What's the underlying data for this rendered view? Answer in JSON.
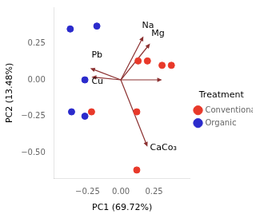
{
  "chart_data": {
    "type": "scatter",
    "xlabel": "PC1 (69.72%)",
    "ylabel": "PC2 (13.48%)",
    "series": [
      {
        "name": "Conventional",
        "color": "#e8392a",
        "marker": "circle",
        "x": [
          0.13,
          0.2,
          0.31,
          0.38,
          0.12,
          -0.22,
          0.12
        ],
        "y": [
          0.13,
          0.13,
          0.1,
          0.1,
          -0.22,
          -0.22,
          -0.62
        ]
      },
      {
        "name": "Organic",
        "color": "#2b2bcc",
        "marker": "circle",
        "x": [
          -0.38,
          -0.18,
          -0.27,
          -0.37,
          -0.27
        ],
        "y": [
          0.35,
          0.37,
          0.0,
          -0.22,
          -0.25
        ]
      }
    ],
    "annotations": [
      {
        "x": 0.17,
        "y": 0.3,
        "color": "#8B3030",
        "label": "Na",
        "label_x": 0.16,
        "label_y": 0.34
      },
      {
        "x": 0.22,
        "y": 0.25,
        "color": "#8B3030",
        "label": "Mg",
        "label_x": 0.23,
        "label_y": 0.29
      },
      {
        "x": -0.23,
        "y": 0.08,
        "color": "#8B3030",
        "label": "Pb",
        "label_x": -0.22,
        "label_y": 0.14
      },
      {
        "x": -0.22,
        "y": 0.02,
        "color": "#8B3030",
        "label": "Cu",
        "label_x": -0.22,
        "label_y": -0.04
      },
      {
        "x": 0.31,
        "y": 0.0,
        "color": "#8B3030"
      },
      {
        "x": 0.2,
        "y": -0.46,
        "color": "#8B3030",
        "label": "CaCo₃",
        "label_x": 0.22,
        "label_y": -0.5
      }
    ],
    "xlim": [
      -0.5,
      0.52
    ],
    "ylim": [
      -0.68,
      0.5
    ],
    "xticks": [
      {
        "value": -0.25,
        "label": "−0.25"
      },
      {
        "value": 0,
        "label": "0.00"
      },
      0.25
    ],
    "yticks": [
      {
        "value": -0.5,
        "label": "−0.50"
      },
      {
        "value": -0.25,
        "label": "−0.25"
      },
      {
        "value": 0,
        "label": "0.00"
      },
      0.25
    ],
    "legend_title": "Treatment",
    "legend": "right",
    "grid": false
  }
}
